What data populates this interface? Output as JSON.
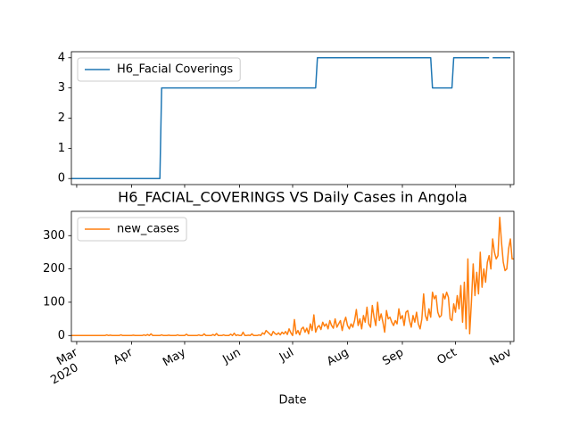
{
  "chart_data": [
    {
      "type": "line",
      "legend": "upper left",
      "ylim": [
        -0.2,
        4.2
      ],
      "yticks": [
        0,
        1,
        2,
        3,
        4
      ],
      "xlim": [
        0,
        250
      ],
      "series": [
        {
          "name": "H6_Facial Coverings",
          "color": "#1f77b4",
          "values": [
            0,
            0,
            0,
            0,
            0,
            0,
            0,
            0,
            0,
            0,
            0,
            0,
            0,
            0,
            0,
            0,
            0,
            0,
            0,
            0,
            0,
            0,
            0,
            0,
            0,
            0,
            0,
            0,
            0,
            0,
            0,
            0,
            0,
            0,
            0,
            0,
            0,
            0,
            0,
            0,
            0,
            0,
            0,
            0,
            0,
            0,
            0,
            0,
            0,
            0,
            0,
            3,
            3,
            3,
            3,
            3,
            3,
            3,
            3,
            3,
            3,
            3,
            3,
            3,
            3,
            3,
            3,
            3,
            3,
            3,
            3,
            3,
            3,
            3,
            3,
            3,
            3,
            3,
            3,
            3,
            3,
            3,
            3,
            3,
            3,
            3,
            3,
            3,
            3,
            3,
            3,
            3,
            3,
            3,
            3,
            3,
            3,
            3,
            3,
            3,
            3,
            3,
            3,
            3,
            3,
            3,
            3,
            3,
            3,
            3,
            3,
            3,
            3,
            3,
            3,
            3,
            3,
            3,
            3,
            3,
            3,
            3,
            3,
            3,
            3,
            3,
            3,
            3,
            3,
            3,
            3,
            3,
            3,
            3,
            3,
            3,
            3,
            3,
            3,
            4,
            4,
            4,
            4,
            4,
            4,
            4,
            4,
            4,
            4,
            4,
            4,
            4,
            4,
            4,
            4,
            4,
            4,
            4,
            4,
            4,
            4,
            4,
            4,
            4,
            4,
            4,
            4,
            4,
            4,
            4,
            4,
            4,
            4,
            4,
            4,
            4,
            4,
            4,
            4,
            4,
            4,
            4,
            4,
            4,
            4,
            4,
            4,
            4,
            4,
            4,
            4,
            4,
            4,
            4,
            4,
            4,
            4,
            4,
            4,
            4,
            4,
            4,
            4,
            4,
            3,
            3,
            3,
            3,
            3,
            3,
            3,
            3,
            3,
            3,
            3,
            3,
            4,
            4,
            4,
            4,
            4,
            4,
            4,
            4,
            4,
            4,
            4,
            4,
            4,
            4,
            4,
            4,
            4,
            4,
            4,
            4,
            4,
            null,
            4,
            4,
            4,
            4,
            4,
            4,
            4,
            4,
            4,
            4,
            4
          ]
        }
      ]
    },
    {
      "type": "line",
      "title": "H6_FACIAL_COVERINGS VS Daily Cases in Angola",
      "xlabel": "Date",
      "legend": "upper left",
      "ylim": [
        -18,
        373
      ],
      "yticks": [
        0,
        100,
        200,
        300
      ],
      "xlim": [
        0,
        250
      ],
      "categories": [
        null,
        null,
        null,
        "Mar\n2020",
        null,
        null,
        null,
        null,
        null,
        null,
        null,
        null,
        null,
        null,
        null,
        null,
        null,
        null,
        null,
        null,
        null,
        null,
        null,
        null,
        null,
        null,
        null,
        null,
        null,
        null,
        null,
        null,
        null,
        null,
        "Apr",
        null,
        null,
        null,
        null,
        null,
        null,
        null,
        null,
        null,
        null,
        null,
        null,
        null,
        null,
        null,
        null,
        null,
        null,
        null,
        null,
        null,
        null,
        null,
        null,
        null,
        null,
        null,
        null,
        null,
        "May",
        null,
        null,
        null,
        null,
        null,
        null,
        null,
        null,
        null,
        null,
        null,
        null,
        null,
        null,
        null,
        null,
        null,
        null,
        null,
        null,
        null,
        null,
        null,
        null,
        null,
        null,
        null,
        null,
        null,
        null,
        "Jun",
        null,
        null,
        null,
        null,
        null,
        null,
        null,
        null,
        null,
        null,
        null,
        null,
        null,
        null,
        null,
        null,
        null,
        null,
        null,
        null,
        null,
        null,
        null,
        null,
        null,
        null,
        null,
        null,
        null,
        "Jul",
        null,
        null,
        null,
        null,
        null,
        null,
        null,
        null,
        null,
        null,
        null,
        null,
        null,
        null,
        null,
        null,
        null,
        null,
        null,
        null,
        null,
        null,
        null,
        null,
        null,
        null,
        null,
        null,
        null,
        null,
        "Aug",
        null,
        null,
        null,
        null,
        null,
        null,
        null,
        null,
        null,
        null,
        null,
        null,
        null,
        null,
        null,
        null,
        null,
        null,
        null,
        null,
        null,
        null,
        null,
        null,
        null,
        null,
        null,
        null,
        null,
        null,
        "Sep",
        null,
        null,
        null,
        null,
        null,
        null,
        null,
        null,
        null,
        null,
        null,
        null,
        null,
        null,
        null,
        null,
        null,
        null,
        null,
        null,
        null,
        null,
        null,
        null,
        null,
        null,
        null,
        null,
        null,
        "Oct",
        null,
        null,
        null,
        null,
        null,
        null,
        null,
        null,
        null,
        null,
        null,
        null,
        null,
        null,
        null,
        null,
        null,
        null,
        null,
        null,
        null,
        null,
        null,
        null,
        null,
        null,
        null,
        null,
        null,
        null,
        "Nov",
        null,
        null
      ],
      "series": [
        {
          "name": "new_cases",
          "color": "#ff7f0e",
          "values": [
            0,
            0,
            0,
            0,
            0,
            0,
            0,
            0,
            0,
            0,
            0,
            0,
            0,
            0,
            0,
            0,
            0,
            0,
            0,
            0,
            2,
            0,
            1,
            0,
            0,
            0,
            0,
            0,
            2,
            0,
            0,
            0,
            0,
            0,
            0,
            1,
            0,
            0,
            0,
            0,
            0,
            2,
            0,
            3,
            0,
            5,
            0,
            0,
            0,
            0,
            0,
            2,
            0,
            0,
            0,
            1,
            0,
            0,
            0,
            0,
            2,
            0,
            0,
            0,
            0,
            4,
            0,
            0,
            0,
            0,
            0,
            0,
            2,
            0,
            0,
            5,
            0,
            0,
            0,
            0,
            3,
            0,
            6,
            0,
            0,
            0,
            2,
            0,
            0,
            0,
            4,
            0,
            7,
            0,
            2,
            0,
            0,
            10,
            0,
            0,
            1,
            0,
            5,
            0,
            0,
            0,
            2,
            0,
            8,
            4,
            15,
            10,
            5,
            0,
            12,
            6,
            3,
            8,
            2,
            10,
            5,
            12,
            3,
            20,
            8,
            0,
            48,
            5,
            15,
            2,
            20,
            25,
            10,
            22,
            5,
            35,
            15,
            62,
            10,
            25,
            30,
            18,
            40,
            28,
            35,
            20,
            45,
            30,
            22,
            50,
            25,
            35,
            45,
            15,
            40,
            55,
            30,
            20,
            35,
            25,
            45,
            78,
            30,
            50,
            20,
            60,
            40,
            85,
            35,
            25,
            90,
            55,
            30,
            100,
            45,
            65,
            40,
            10,
            75,
            50,
            55,
            40,
            30,
            45,
            35,
            80,
            50,
            60,
            30,
            70,
            75,
            45,
            25,
            60,
            40,
            70,
            35,
            20,
            50,
            125,
            60,
            45,
            80,
            55,
            130,
            110,
            120,
            70,
            55,
            60,
            125,
            110,
            130,
            115,
            50,
            45,
            95,
            70,
            120,
            80,
            150,
            40,
            160,
            20,
            230,
            5,
            100,
            215,
            120,
            190,
            125,
            250,
            145,
            200,
            160,
            220,
            240,
            200,
            290,
            250,
            230,
            240,
            355,
            280,
            220,
            195,
            200,
            260,
            290,
            230,
            230
          ]
        }
      ]
    }
  ]
}
